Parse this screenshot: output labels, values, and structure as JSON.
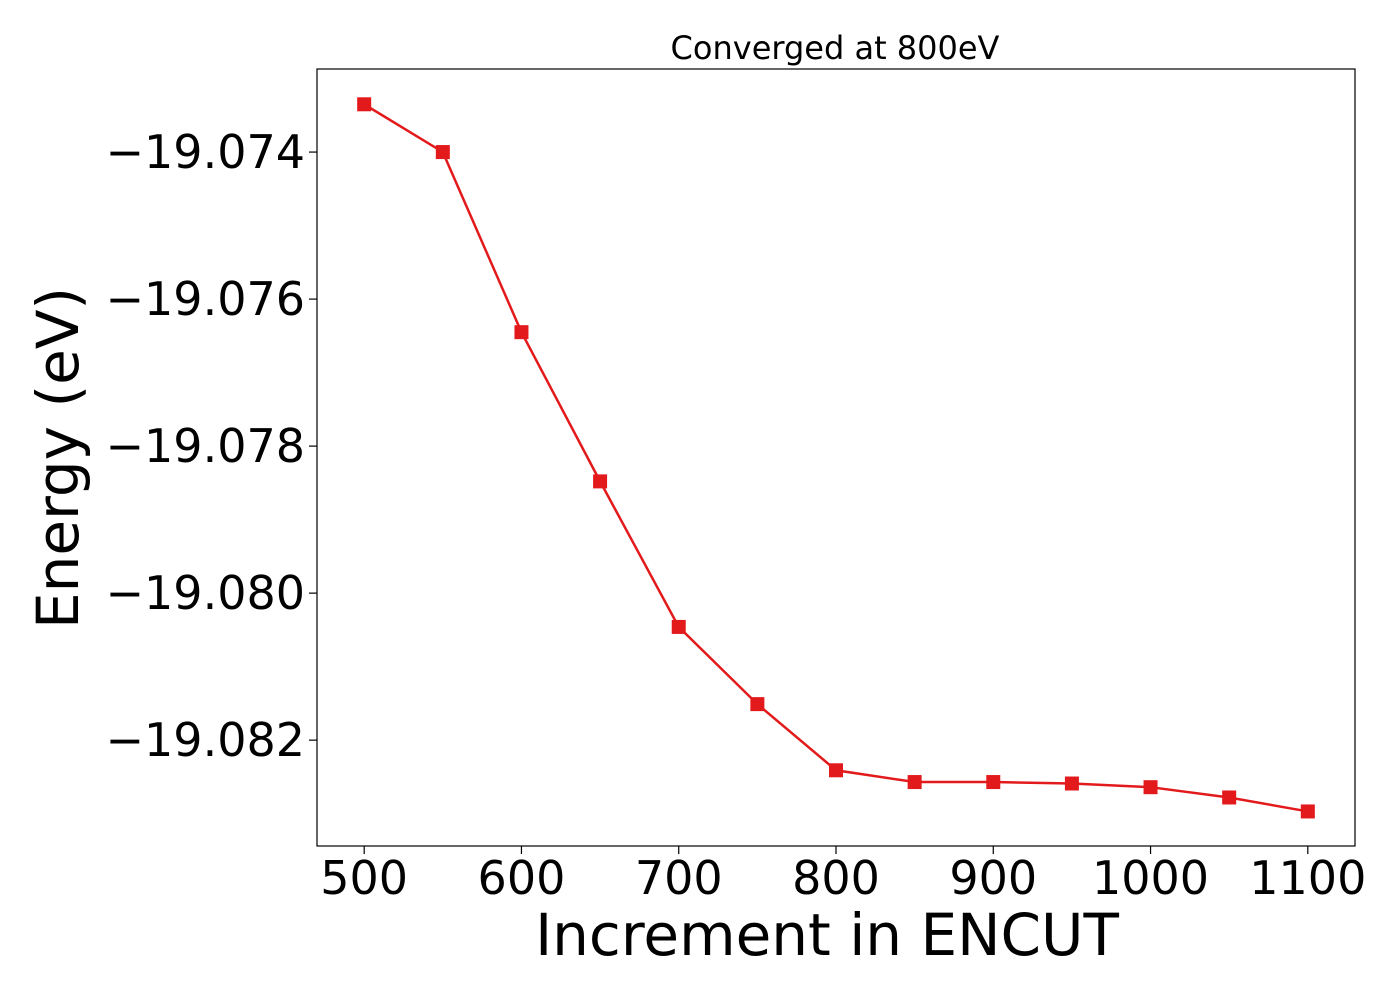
{
  "chart_data": {
    "type": "line",
    "title": "Converged at 800eV",
    "xlabel": "Increment in ENCUT",
    "ylabel": "Energy (eV)",
    "x": [
      500,
      550,
      600,
      650,
      700,
      750,
      800,
      850,
      900,
      950,
      1000,
      1050,
      1100
    ],
    "series": [
      {
        "values": [
          -19.07335,
          -19.074,
          -19.07645,
          -19.07848,
          -19.08046,
          -19.08151,
          -19.08241,
          -19.08257,
          -19.08257,
          -19.08259,
          -19.08264,
          -19.08278,
          -19.08297
        ],
        "color": "#e31a1c",
        "marker": "square"
      }
    ],
    "xlim": [
      470,
      1130
    ],
    "ylim": [
      -19.08344,
      -19.07287
    ],
    "xticks": [
      500,
      600,
      700,
      800,
      900,
      1000,
      1100
    ],
    "xtick_labels": [
      "500",
      "600",
      "700",
      "800",
      "900",
      "1000",
      "1100"
    ],
    "yticks": [
      -19.074,
      -19.076,
      -19.078,
      -19.08,
      -19.082
    ],
    "ytick_labels": [
      "−19.074",
      "−19.076",
      "−19.078",
      "−19.080",
      "−19.082"
    ],
    "grid": false,
    "legend": "none"
  }
}
